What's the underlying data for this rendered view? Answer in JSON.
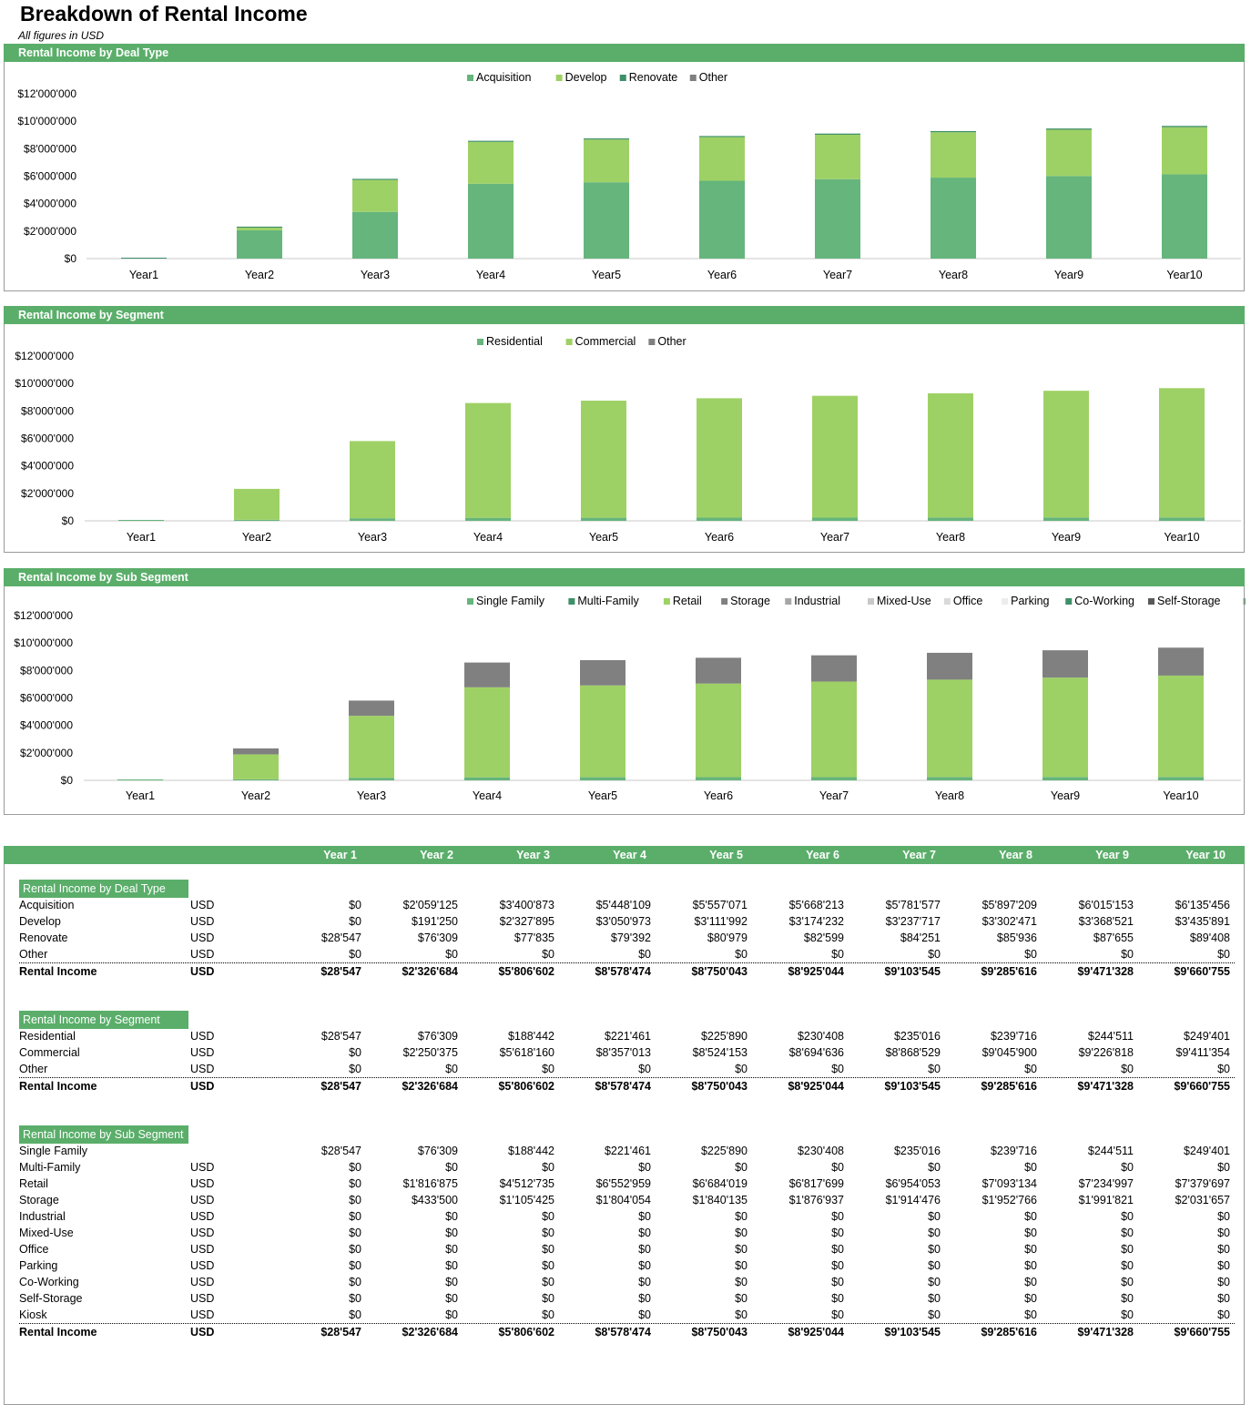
{
  "page": {
    "title": "Breakdown of Rental Income",
    "subtitle": "All figures in USD"
  },
  "colors": {
    "band": "#5aae6a",
    "acquisition": "#65b57c",
    "develop": "#9ed165",
    "renovate": "#3f8f68",
    "other": "#7f7f7f",
    "single_family": "#65b57c",
    "multi_family": "#3f8f68",
    "retail": "#9ed165",
    "storage": "#808080",
    "industrial": "#a6a6a6",
    "mixed_use": "#c8c8c8",
    "office": "#d9d9d9",
    "parking": "#ececec",
    "co_working": "#3f8f68",
    "self_storage": "#595959",
    "kiosk": "#7f9f87"
  },
  "chart_data": [
    {
      "id": "deal",
      "type": "bar",
      "stacked": true,
      "title": "Rental Income by Deal Type",
      "categories": [
        "Year1",
        "Year2",
        "Year3",
        "Year4",
        "Year5",
        "Year6",
        "Year7",
        "Year8",
        "Year9",
        "Year10"
      ],
      "y_tick_labels": [
        "$0",
        "$2'000'000",
        "$4'000'000",
        "$6'000'000",
        "$8'000'000",
        "$10'000'000",
        "$12'000'000"
      ],
      "ylim": [
        0,
        12000000
      ],
      "legend_position": "top",
      "series": [
        {
          "name": "Acquisition",
          "color_key": "acquisition",
          "values": [
            0,
            2059125,
            3400873,
            5448109,
            5557071,
            5668213,
            5781577,
            5897209,
            6015153,
            6135456
          ]
        },
        {
          "name": "Develop",
          "color_key": "develop",
          "values": [
            0,
            191250,
            2327895,
            3050973,
            3111992,
            3174232,
            3237717,
            3302471,
            3368521,
            3435891
          ]
        },
        {
          "name": "Renovate",
          "color_key": "renovate",
          "values": [
            28547,
            76309,
            77835,
            79392,
            80979,
            82599,
            84251,
            85936,
            87655,
            89408
          ]
        },
        {
          "name": "Other",
          "color_key": "other",
          "values": [
            0,
            0,
            0,
            0,
            0,
            0,
            0,
            0,
            0,
            0
          ]
        }
      ]
    },
    {
      "id": "segment",
      "type": "bar",
      "stacked": true,
      "title": "Rental Income by Segment",
      "categories": [
        "Year1",
        "Year2",
        "Year3",
        "Year4",
        "Year5",
        "Year6",
        "Year7",
        "Year8",
        "Year9",
        "Year10"
      ],
      "y_tick_labels": [
        "$0",
        "$2'000'000",
        "$4'000'000",
        "$6'000'000",
        "$8'000'000",
        "$10'000'000",
        "$12'000'000"
      ],
      "ylim": [
        0,
        12000000
      ],
      "legend_position": "top",
      "series": [
        {
          "name": "Residential",
          "color_key": "acquisition",
          "values": [
            28547,
            76309,
            188442,
            221461,
            225890,
            230408,
            235016,
            239716,
            244511,
            249401
          ]
        },
        {
          "name": "Commercial",
          "color_key": "develop",
          "values": [
            0,
            2250375,
            5618160,
            8357013,
            8524153,
            8694636,
            8868529,
            9045900,
            9226818,
            9411354
          ]
        },
        {
          "name": "Other",
          "color_key": "other",
          "values": [
            0,
            0,
            0,
            0,
            0,
            0,
            0,
            0,
            0,
            0
          ]
        }
      ]
    },
    {
      "id": "subsegment",
      "type": "bar",
      "stacked": true,
      "title": "Rental Income by Sub Segment",
      "categories": [
        "Year1",
        "Year2",
        "Year3",
        "Year4",
        "Year5",
        "Year6",
        "Year7",
        "Year8",
        "Year9",
        "Year10"
      ],
      "y_tick_labels": [
        "$0",
        "$2'000'000",
        "$4'000'000",
        "$6'000'000",
        "$8'000'000",
        "$10'000'000",
        "$12'000'000"
      ],
      "ylim": [
        0,
        12000000
      ],
      "legend_position": "top",
      "series": [
        {
          "name": "Single Family",
          "color_key": "single_family",
          "values": [
            28547,
            76309,
            188442,
            221461,
            225890,
            230408,
            235016,
            239716,
            244511,
            249401
          ]
        },
        {
          "name": "Multi-Family",
          "color_key": "multi_family",
          "values": [
            0,
            0,
            0,
            0,
            0,
            0,
            0,
            0,
            0,
            0
          ]
        },
        {
          "name": "Retail",
          "color_key": "retail",
          "values": [
            0,
            1816875,
            4512735,
            6552959,
            6684019,
            6817699,
            6954053,
            7093134,
            7234997,
            7379697
          ]
        },
        {
          "name": "Storage",
          "color_key": "storage",
          "values": [
            0,
            433500,
            1105425,
            1804054,
            1840135,
            1876937,
            1914476,
            1952766,
            1991821,
            2031657
          ]
        },
        {
          "name": "Industrial",
          "color_key": "industrial",
          "values": [
            0,
            0,
            0,
            0,
            0,
            0,
            0,
            0,
            0,
            0
          ]
        },
        {
          "name": "Mixed-Use",
          "color_key": "mixed_use",
          "values": [
            0,
            0,
            0,
            0,
            0,
            0,
            0,
            0,
            0,
            0
          ]
        },
        {
          "name": "Office",
          "color_key": "office",
          "values": [
            0,
            0,
            0,
            0,
            0,
            0,
            0,
            0,
            0,
            0
          ]
        },
        {
          "name": "Parking",
          "color_key": "parking",
          "values": [
            0,
            0,
            0,
            0,
            0,
            0,
            0,
            0,
            0,
            0
          ]
        },
        {
          "name": "Co-Working",
          "color_key": "co_working",
          "values": [
            0,
            0,
            0,
            0,
            0,
            0,
            0,
            0,
            0,
            0
          ]
        },
        {
          "name": "Self-Storage",
          "color_key": "self_storage",
          "values": [
            0,
            0,
            0,
            0,
            0,
            0,
            0,
            0,
            0,
            0
          ]
        },
        {
          "name": "Kiosk",
          "color_key": "kiosk",
          "values": [
            0,
            0,
            0,
            0,
            0,
            0,
            0,
            0,
            0,
            0
          ]
        }
      ]
    }
  ],
  "table": {
    "years": [
      "Year 1",
      "Year 2",
      "Year 3",
      "Year 4",
      "Year 5",
      "Year 6",
      "Year 7",
      "Year 8",
      "Year 9",
      "Year 10"
    ],
    "sections": [
      {
        "label": "Rental Income by Deal Type",
        "rows": [
          {
            "label": "Acquisition",
            "unit": "USD",
            "values": [
              "$0",
              "$2'059'125",
              "$3'400'873",
              "$5'448'109",
              "$5'557'071",
              "$5'668'213",
              "$5'781'577",
              "$5'897'209",
              "$6'015'153",
              "$6'135'456"
            ]
          },
          {
            "label": "Develop",
            "unit": "USD",
            "values": [
              "$0",
              "$191'250",
              "$2'327'895",
              "$3'050'973",
              "$3'111'992",
              "$3'174'232",
              "$3'237'717",
              "$3'302'471",
              "$3'368'521",
              "$3'435'891"
            ]
          },
          {
            "label": "Renovate",
            "unit": "USD",
            "values": [
              "$28'547",
              "$76'309",
              "$77'835",
              "$79'392",
              "$80'979",
              "$82'599",
              "$84'251",
              "$85'936",
              "$87'655",
              "$89'408"
            ]
          },
          {
            "label": "Other",
            "unit": "USD",
            "values": [
              "$0",
              "$0",
              "$0",
              "$0",
              "$0",
              "$0",
              "$0",
              "$0",
              "$0",
              "$0"
            ]
          }
        ],
        "total": {
          "label": "Rental Income",
          "unit": "USD",
          "values": [
            "$28'547",
            "$2'326'684",
            "$5'806'602",
            "$8'578'474",
            "$8'750'043",
            "$8'925'044",
            "$9'103'545",
            "$9'285'616",
            "$9'471'328",
            "$9'660'755"
          ]
        }
      },
      {
        "label": "Rental Income by Segment",
        "rows": [
          {
            "label": "Residential",
            "unit": "USD",
            "values": [
              "$28'547",
              "$76'309",
              "$188'442",
              "$221'461",
              "$225'890",
              "$230'408",
              "$235'016",
              "$239'716",
              "$244'511",
              "$249'401"
            ]
          },
          {
            "label": "Commercial",
            "unit": "USD",
            "values": [
              "$0",
              "$2'250'375",
              "$5'618'160",
              "$8'357'013",
              "$8'524'153",
              "$8'694'636",
              "$8'868'529",
              "$9'045'900",
              "$9'226'818",
              "$9'411'354"
            ]
          },
          {
            "label": "Other",
            "unit": "USD",
            "values": [
              "$0",
              "$0",
              "$0",
              "$0",
              "$0",
              "$0",
              "$0",
              "$0",
              "$0",
              "$0"
            ]
          }
        ],
        "total": {
          "label": "Rental Income",
          "unit": "USD",
          "values": [
            "$28'547",
            "$2'326'684",
            "$5'806'602",
            "$8'578'474",
            "$8'750'043",
            "$8'925'044",
            "$9'103'545",
            "$9'285'616",
            "$9'471'328",
            "$9'660'755"
          ]
        }
      },
      {
        "label": "Rental Income by Sub Segment",
        "rows": [
          {
            "label": "Single Family",
            "unit": "",
            "values": [
              "$28'547",
              "$76'309",
              "$188'442",
              "$221'461",
              "$225'890",
              "$230'408",
              "$235'016",
              "$239'716",
              "$244'511",
              "$249'401"
            ]
          },
          {
            "label": "Multi-Family",
            "unit": "USD",
            "values": [
              "$0",
              "$0",
              "$0",
              "$0",
              "$0",
              "$0",
              "$0",
              "$0",
              "$0",
              "$0"
            ]
          },
          {
            "label": "Retail",
            "unit": "USD",
            "values": [
              "$0",
              "$1'816'875",
              "$4'512'735",
              "$6'552'959",
              "$6'684'019",
              "$6'817'699",
              "$6'954'053",
              "$7'093'134",
              "$7'234'997",
              "$7'379'697"
            ]
          },
          {
            "label": "Storage",
            "unit": "USD",
            "values": [
              "$0",
              "$433'500",
              "$1'105'425",
              "$1'804'054",
              "$1'840'135",
              "$1'876'937",
              "$1'914'476",
              "$1'952'766",
              "$1'991'821",
              "$2'031'657"
            ]
          },
          {
            "label": "Industrial",
            "unit": "USD",
            "values": [
              "$0",
              "$0",
              "$0",
              "$0",
              "$0",
              "$0",
              "$0",
              "$0",
              "$0",
              "$0"
            ]
          },
          {
            "label": "Mixed-Use",
            "unit": "USD",
            "values": [
              "$0",
              "$0",
              "$0",
              "$0",
              "$0",
              "$0",
              "$0",
              "$0",
              "$0",
              "$0"
            ]
          },
          {
            "label": "Office",
            "unit": "USD",
            "values": [
              "$0",
              "$0",
              "$0",
              "$0",
              "$0",
              "$0",
              "$0",
              "$0",
              "$0",
              "$0"
            ]
          },
          {
            "label": "Parking",
            "unit": "USD",
            "values": [
              "$0",
              "$0",
              "$0",
              "$0",
              "$0",
              "$0",
              "$0",
              "$0",
              "$0",
              "$0"
            ]
          },
          {
            "label": "Co-Working",
            "unit": "USD",
            "values": [
              "$0",
              "$0",
              "$0",
              "$0",
              "$0",
              "$0",
              "$0",
              "$0",
              "$0",
              "$0"
            ]
          },
          {
            "label": "Self-Storage",
            "unit": "USD",
            "values": [
              "$0",
              "$0",
              "$0",
              "$0",
              "$0",
              "$0",
              "$0",
              "$0",
              "$0",
              "$0"
            ]
          },
          {
            "label": "Kiosk",
            "unit": "USD",
            "values": [
              "$0",
              "$0",
              "$0",
              "$0",
              "$0",
              "$0",
              "$0",
              "$0",
              "$0",
              "$0"
            ]
          }
        ],
        "total": {
          "label": "Rental Income",
          "unit": "USD",
          "values": [
            "$28'547",
            "$2'326'684",
            "$5'806'602",
            "$8'578'474",
            "$8'750'043",
            "$8'925'044",
            "$9'103'545",
            "$9'285'616",
            "$9'471'328",
            "$9'660'755"
          ]
        }
      }
    ]
  }
}
